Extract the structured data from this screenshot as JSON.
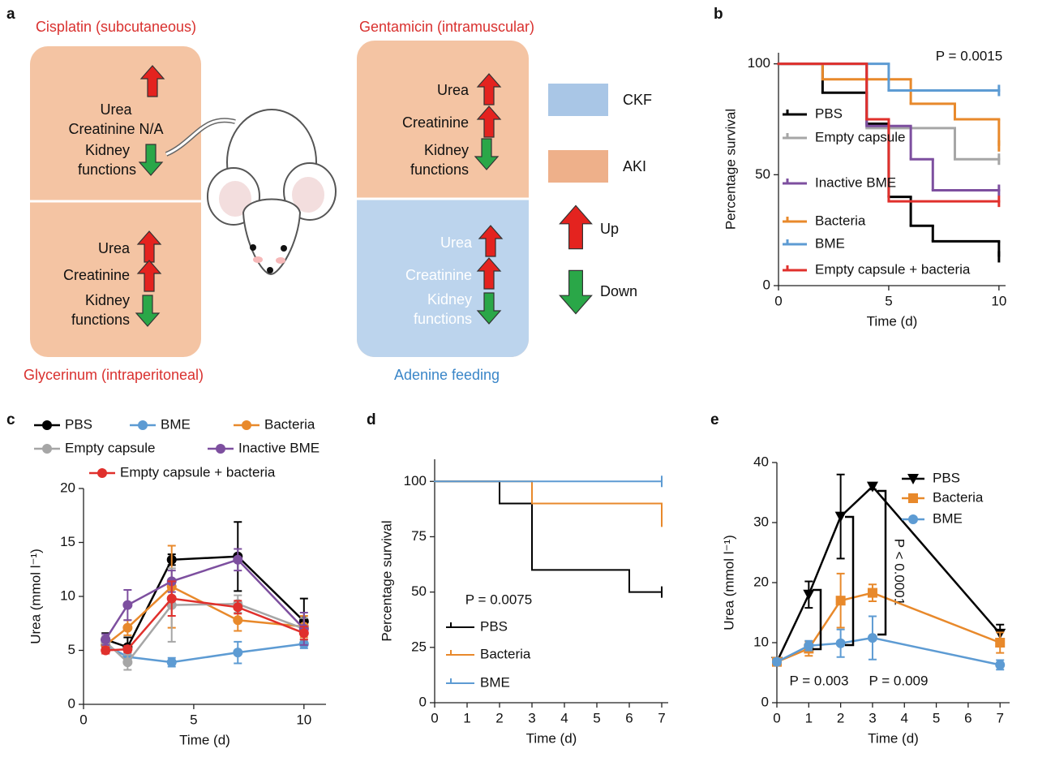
{
  "diagram": {
    "label": "a",
    "left_top": {
      "title": "Cisplatin (subcutaneous)",
      "urea": "Urea",
      "creatinine": "Creatinine N/A",
      "kidney": [
        "Kidney",
        "functions"
      ]
    },
    "left_bottom": {
      "title": "Glycerinum (intraperitoneal)",
      "urea": "Urea",
      "creatinine": "Creatinine",
      "kidney": [
        "Kidney",
        "functions"
      ]
    },
    "right_top": {
      "title": "Gentamicin (intramuscular)",
      "urea": "Urea",
      "creatinine": "Creatinine",
      "kidney": [
        "Kidney",
        "functions"
      ]
    },
    "right_bottom": {
      "title": "Adenine feeding",
      "urea": "Urea",
      "creatinine": "Creatinine",
      "kidney": [
        "Kidney",
        "functions"
      ]
    },
    "legend": {
      "ckf": "CKF",
      "aki": "AKI",
      "up": "Up",
      "down": "Down"
    }
  },
  "chart_data": [
    {
      "type": "step",
      "label": "b",
      "xlabel": "Time (d)",
      "ylabel": "Percentage survival",
      "annotations": [
        "P = 0.0015"
      ],
      "xlim": [
        0,
        10.3
      ],
      "ylim": [
        0,
        105
      ],
      "xticks": [
        0,
        5,
        10
      ],
      "yticks": [
        0,
        50,
        100
      ],
      "series": [
        {
          "name": "PBS",
          "color": "#000000",
          "x": [
            0,
            2,
            4,
            5,
            6,
            7,
            10
          ],
          "values": [
            100,
            87,
            73,
            40,
            27,
            20,
            13
          ]
        },
        {
          "name": "Empty capsule",
          "color": "#a6a6a6",
          "x": [
            0,
            4,
            8,
            10
          ],
          "values": [
            100,
            71,
            57,
            57
          ]
        },
        {
          "name": "Inactive BME",
          "color": "#7d4f9f",
          "x": [
            0,
            4,
            6,
            7,
            10
          ],
          "values": [
            100,
            72,
            57,
            43,
            43
          ]
        },
        {
          "name": "Bacteria",
          "color": "#e8892b",
          "x": [
            0,
            2,
            6,
            8,
            10
          ],
          "values": [
            100,
            93,
            82,
            75,
            63
          ]
        },
        {
          "name": "BME",
          "color": "#5d9bd3",
          "x": [
            0,
            5,
            10
          ],
          "values": [
            100,
            88,
            88
          ]
        },
        {
          "name": "Empty capsule + bacteria",
          "color": "#e0302c",
          "x": [
            0,
            4,
            5,
            10
          ],
          "values": [
            100,
            75,
            38,
            38
          ]
        }
      ]
    },
    {
      "type": "line",
      "label": "c",
      "xlabel": "Time (d)",
      "ylabel": "Urea (mmol l⁻¹)",
      "xlim": [
        0,
        11
      ],
      "ylim": [
        0,
        20
      ],
      "xticks": [
        0,
        5,
        10
      ],
      "yticks": [
        0,
        5,
        10,
        15,
        20
      ],
      "x": [
        1,
        2,
        4,
        7,
        10
      ],
      "series": [
        {
          "name": "PBS",
          "color": "#000000",
          "marker": "circle",
          "values": [
            6.0,
            5.3,
            13.4,
            13.7,
            7.7
          ],
          "errors": [
            0.6,
            0.9,
            0.5,
            3.2,
            2.1
          ]
        },
        {
          "name": "BME",
          "color": "#5d9bd3",
          "marker": "circle",
          "values": [
            5.5,
            4.4,
            3.9,
            4.8,
            5.6
          ],
          "errors": [
            0.4,
            0.5,
            0.4,
            1.0,
            0.4
          ]
        },
        {
          "name": "Bacteria",
          "color": "#e8892b",
          "marker": "circle",
          "values": [
            5.5,
            7.1,
            10.9,
            7.8,
            7.2
          ],
          "errors": [
            0.5,
            0.7,
            3.8,
            1.0,
            1.0
          ]
        },
        {
          "name": "Empty capsule",
          "color": "#a6a6a6",
          "marker": "circle",
          "values": [
            5.8,
            3.9,
            9.2,
            9.3,
            7.0
          ],
          "errors": [
            0.5,
            0.7,
            3.4,
            0.8,
            1.0
          ]
        },
        {
          "name": "Inactive BME",
          "color": "#7d4f9f",
          "marker": "circle",
          "values": [
            6.0,
            9.2,
            11.4,
            13.4,
            7.0
          ],
          "errors": [
            0.5,
            1.4,
            1.0,
            1.0,
            1.5
          ]
        },
        {
          "name": "Empty capsule + bacteria",
          "color": "#e0302c",
          "marker": "circle",
          "values": [
            5.0,
            5.1,
            9.8,
            9.0,
            6.6
          ],
          "errors": [
            0.3,
            0.3,
            1.6,
            0.6,
            0.6
          ]
        }
      ]
    },
    {
      "type": "step",
      "label": "d",
      "xlabel": "Time (d)",
      "ylabel": "Percentage survival",
      "annotations": [
        "P = 0.0075"
      ],
      "xlim": [
        0,
        7.2
      ],
      "ylim": [
        0,
        110
      ],
      "xticks": [
        0,
        1,
        2,
        3,
        4,
        5,
        6,
        7
      ],
      "yticks": [
        0,
        25,
        50,
        75,
        100
      ],
      "series": [
        {
          "name": "PBS",
          "color": "#000000",
          "x": [
            0,
            2,
            3,
            6,
            7
          ],
          "values": [
            100,
            90,
            60,
            50,
            50
          ]
        },
        {
          "name": "Bacteria",
          "color": "#e8892b",
          "x": [
            0,
            3,
            7
          ],
          "values": [
            100,
            90,
            82
          ]
        },
        {
          "name": "BME",
          "color": "#5d9bd3",
          "x": [
            0,
            7
          ],
          "values": [
            100,
            100
          ]
        }
      ]
    },
    {
      "type": "line",
      "label": "e",
      "xlabel": "Time (d)",
      "ylabel": "Urea (mmol l⁻¹)",
      "annotations": [
        "P = 0.003",
        "P = 0.009",
        "P < 0.0001"
      ],
      "xlim": [
        0,
        7.3
      ],
      "ylim": [
        0,
        40
      ],
      "xticks": [
        0,
        1,
        2,
        3,
        4,
        5,
        6,
        7
      ],
      "yticks": [
        0,
        10,
        20,
        30,
        40
      ],
      "x": [
        0,
        1,
        2,
        3,
        7
      ],
      "series": [
        {
          "name": "PBS",
          "color": "#000000",
          "marker": "triangle",
          "values": [
            6.8,
            18,
            31,
            36,
            11.5
          ],
          "errors": [
            0.5,
            2.2,
            7,
            0.5,
            1.5
          ]
        },
        {
          "name": "Bacteria",
          "color": "#e8892b",
          "marker": "square",
          "values": [
            6.8,
            9,
            17,
            18.3,
            10
          ],
          "errors": [
            0.5,
            1.2,
            4.5,
            1.4,
            1.7
          ]
        },
        {
          "name": "BME",
          "color": "#5d9bd3",
          "marker": "circle",
          "values": [
            6.8,
            9.5,
            9.9,
            10.8,
            6.3
          ],
          "errors": [
            0.5,
            0.8,
            2.3,
            3.6,
            0.8
          ]
        }
      ]
    }
  ]
}
